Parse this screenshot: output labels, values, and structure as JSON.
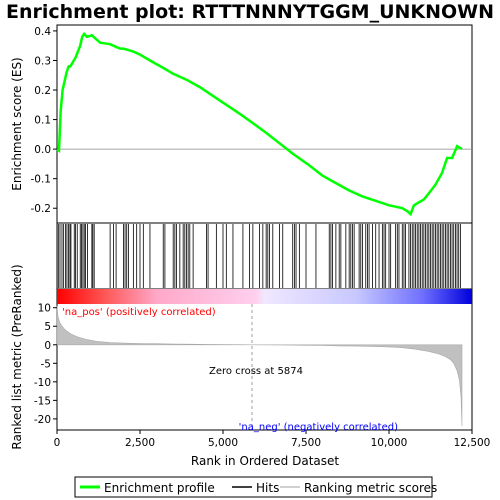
{
  "chart_data": {
    "type": "line",
    "title": "Enrichment plot: RTTTNNNYTGGM_UNKNOWN",
    "xlabel": "Rank in Ordered Dataset",
    "ylabel_top": "Enrichment score (ES)",
    "ylabel_bottom": "Ranked list metric (PreRanked)",
    "x_ticks": [
      0,
      2500,
      5000,
      7500,
      10000,
      12500
    ],
    "x_tick_labels": [
      "0",
      "2,500",
      "5,000",
      "7,500",
      "10,000",
      "12,500"
    ],
    "xlim": [
      0,
      12500
    ],
    "es_ylim": [
      -0.25,
      0.42
    ],
    "es_y_ticks": [
      -0.2,
      -0.1,
      0.0,
      0.1,
      0.2,
      0.3,
      0.4
    ],
    "es_y_tick_labels": [
      "-0.2",
      "-0.1",
      "0.0",
      "0.1",
      "0.2",
      "0.3",
      "0.4"
    ],
    "metric_ylim": [
      -23,
      11
    ],
    "metric_y_ticks": [
      10,
      5,
      0,
      -5,
      -10,
      -15,
      -20
    ],
    "metric_y_tick_labels": [
      "10",
      "5",
      "0",
      "-5",
      "-10",
      "-15",
      "-20"
    ],
    "grid": false,
    "series": [
      {
        "name": "Enrichment profile",
        "color": "#00ff00",
        "x": [
          0,
          60,
          110,
          170,
          230,
          290,
          350,
          400,
          560,
          700,
          760,
          820,
          900,
          1050,
          1100,
          1300,
          1600,
          1700,
          1900,
          2000,
          2150,
          2300,
          2500,
          2800,
          3200,
          3500,
          3900,
          4300,
          4700,
          5100,
          5500,
          5874,
          6300,
          6700,
          7100,
          7600,
          8000,
          8400,
          8800,
          9200,
          9600,
          10000,
          10200,
          10400,
          10550,
          10650,
          10750,
          10900,
          11050,
          11200,
          11400,
          11600,
          11750,
          11900,
          12050,
          12200
        ],
        "y": [
          0.0,
          -0.005,
          0.13,
          0.2,
          0.23,
          0.26,
          0.28,
          0.28,
          0.31,
          0.35,
          0.38,
          0.39,
          0.38,
          0.385,
          0.38,
          0.36,
          0.355,
          0.35,
          0.34,
          0.34,
          0.335,
          0.33,
          0.32,
          0.3,
          0.275,
          0.255,
          0.235,
          0.21,
          0.18,
          0.15,
          0.12,
          0.09,
          0.055,
          0.02,
          -0.015,
          -0.055,
          -0.09,
          -0.115,
          -0.14,
          -0.16,
          -0.175,
          -0.19,
          -0.195,
          -0.2,
          -0.21,
          -0.22,
          -0.19,
          -0.18,
          -0.17,
          -0.15,
          -0.12,
          -0.08,
          -0.03,
          -0.03,
          0.01,
          0.0
        ]
      }
    ],
    "hits_x": [
      40,
      90,
      150,
      200,
      260,
      300,
      350,
      390,
      420,
      520,
      560,
      610,
      700,
      740,
      780,
      820,
      860,
      920,
      1050,
      1080,
      1120,
      1600,
      1700,
      1780,
      2000,
      2050,
      2100,
      2150,
      2300,
      2400,
      2500,
      2600,
      2800,
      3200,
      3250,
      3500,
      3550,
      3600,
      3700,
      3800,
      3850,
      3900,
      3950,
      4000,
      4100,
      4500,
      4550,
      4800,
      5000,
      5100,
      5300,
      5600,
      5800,
      5900,
      6100,
      6200,
      6300,
      6350,
      6400,
      6500,
      6700,
      6800,
      7100,
      7150,
      7200,
      7300,
      7500,
      7800,
      8200,
      8250,
      8300,
      8400,
      8500,
      8550,
      8700,
      8800,
      8850,
      8900,
      8950,
      9100,
      9150,
      9200,
      9300,
      9350,
      9400,
      9500,
      9600,
      9700,
      9800,
      9850,
      9900,
      10000,
      10050,
      10200,
      10250,
      10300,
      10400,
      10450,
      10500,
      10600,
      10650,
      10700,
      10750,
      10800,
      10850,
      10900,
      10950,
      11000,
      11050,
      11100,
      11150,
      11200,
      11250,
      11300,
      11350,
      11400,
      11450,
      11500,
      11550,
      11600,
      11650,
      11700,
      11750,
      11800,
      11850,
      11900,
      11950,
      12000,
      12050,
      12100,
      12150
    ],
    "metric_curve": {
      "x": [
        0,
        30,
        80,
        150,
        250,
        400,
        600,
        900,
        1200,
        1600,
        2000,
        2500,
        3000,
        3500,
        4000,
        4500,
        5000,
        5500,
        5874,
        6500,
        7000,
        7500,
        8000,
        8500,
        9000,
        9500,
        10000,
        10400,
        10800,
        11200,
        11500,
        11700,
        11850,
        11950,
        12050,
        12120,
        12170,
        12200
      ],
      "y": [
        10.5,
        7.5,
        6.0,
        5.0,
        4.0,
        3.0,
        2.2,
        1.4,
        0.9,
        0.6,
        0.45,
        0.35,
        0.28,
        0.2,
        0.15,
        0.1,
        0.07,
        0.03,
        0.0,
        -0.05,
        -0.1,
        -0.15,
        -0.2,
        -0.3,
        -0.35,
        -0.45,
        -0.6,
        -0.8,
        -1.2,
        -1.8,
        -2.5,
        -3.2,
        -4.0,
        -5.0,
        -7.0,
        -9.5,
        -14.0,
        -22.0
      ]
    },
    "zero_cross_x": 5874,
    "zero_cross_label": "Zero cross at 5874",
    "pos_label": "'na_pos' (positively correlated)",
    "neg_label": "'na_neg' (negatively correlated)",
    "legend": [
      {
        "label": "Enrichment profile",
        "color": "#00ff00"
      },
      {
        "label": "Hits",
        "color": "#000000"
      },
      {
        "label": "Ranking metric scores",
        "color": "#c0c0c0"
      }
    ],
    "legend_position": "bottom",
    "colors": {
      "pos_annot": "#ff0000",
      "neg_annot": "#0000ff",
      "metric_fill": "#c0c0c0",
      "frame": "#000000"
    }
  }
}
